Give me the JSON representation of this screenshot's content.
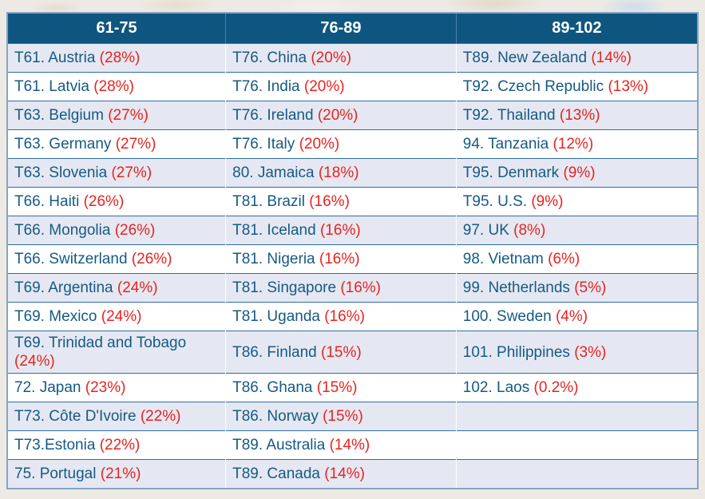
{
  "chart_data": {
    "type": "table",
    "title": "",
    "columns": [
      "61-75",
      "76-89",
      "89-102"
    ],
    "rows": [
      [
        {
          "name": "T61. Austria",
          "pct": "(28%)",
          "percent": 28
        },
        {
          "name": "T76. China",
          "pct": "(20%)",
          "percent": 20
        },
        {
          "name": "T89. New Zealand",
          "pct": "(14%)",
          "percent": 14
        }
      ],
      [
        {
          "name": "T61. Latvia",
          "pct": "(28%)",
          "percent": 28
        },
        {
          "name": "T76. India",
          "pct": "(20%)",
          "percent": 20
        },
        {
          "name": "T92. Czech Republic",
          "pct": "(13%)",
          "percent": 13
        }
      ],
      [
        {
          "name": "T63. Belgium",
          "pct": "(27%)",
          "percent": 27
        },
        {
          "name": "T76. Ireland",
          "pct": "(20%)",
          "percent": 20
        },
        {
          "name": "T92. Thailand",
          "pct": "(13%)",
          "percent": 13
        }
      ],
      [
        {
          "name": "T63. Germany",
          "pct": "(27%)",
          "percent": 27
        },
        {
          "name": "T76. Italy",
          "pct": "(20%)",
          "percent": 20
        },
        {
          "name": "94. Tanzania",
          "pct": "(12%)",
          "percent": 12
        }
      ],
      [
        {
          "name": "T63. Slovenia",
          "pct": "(27%)",
          "percent": 27
        },
        {
          "name": "80. Jamaica",
          "pct": "(18%)",
          "percent": 18
        },
        {
          "name": "T95. Denmark",
          "pct": "(9%)",
          "percent": 9
        }
      ],
      [
        {
          "name": "T66. Haiti",
          "pct": "(26%)",
          "percent": 26
        },
        {
          "name": "T81. Brazil",
          "pct": "(16%)",
          "percent": 16
        },
        {
          "name": "T95. U.S.",
          "pct": "(9%)",
          "percent": 9
        }
      ],
      [
        {
          "name": "T66. Mongolia",
          "pct": "(26%)",
          "percent": 26
        },
        {
          "name": "T81. Iceland",
          "pct": "(16%)",
          "percent": 16
        },
        {
          "name": "97. UK",
          "pct": "(8%)",
          "percent": 8
        }
      ],
      [
        {
          "name": "T66. Switzerland",
          "pct": "(26%)",
          "percent": 26
        },
        {
          "name": "T81. Nigeria",
          "pct": "(16%)",
          "percent": 16
        },
        {
          "name": "98. Vietnam",
          "pct": "(6%)",
          "percent": 6
        }
      ],
      [
        {
          "name": "T69. Argentina",
          "pct": "(24%)",
          "percent": 24
        },
        {
          "name": "T81. Singapore",
          "pct": "(16%)",
          "percent": 16
        },
        {
          "name": "99. Netherlands",
          "pct": "(5%)",
          "percent": 5
        }
      ],
      [
        {
          "name": "T69. Mexico",
          "pct": "(24%)",
          "percent": 24
        },
        {
          "name": "T81. Uganda",
          "pct": "(16%)",
          "percent": 16
        },
        {
          "name": "100. Sweden",
          "pct": "(4%)",
          "percent": 4
        }
      ],
      [
        {
          "name": "T69. Trinidad and Tobago",
          "pct": "(24%)",
          "percent": 24
        },
        {
          "name": "T86. Finland",
          "pct": "(15%)",
          "percent": 15
        },
        {
          "name": "101. Philippines",
          "pct": "(3%)",
          "percent": 3
        }
      ],
      [
        {
          "name": "72. Japan",
          "pct": "(23%)",
          "percent": 23
        },
        {
          "name": "T86. Ghana",
          "pct": "(15%)",
          "percent": 15
        },
        {
          "name": "102. Laos",
          "pct": "(0.2%)",
          "percent": 0.2
        }
      ],
      [
        {
          "name": "T73. Côte D'Ivoire",
          "pct": "(22%)",
          "percent": 22
        },
        {
          "name": "T86. Norway",
          "pct": "(15%)",
          "percent": 15
        },
        null
      ],
      [
        {
          "name": "T73.Estonia",
          "pct": "(22%)",
          "percent": 22
        },
        {
          "name": "T89. Australia",
          "pct": "(14%)",
          "percent": 14
        },
        null
      ],
      [
        {
          "name": "75. Portugal",
          "pct": "(21%)",
          "percent": 21
        },
        {
          "name": "T89. Canada",
          "pct": "(14%)",
          "percent": 14
        },
        null
      ]
    ],
    "colors": {
      "header_background": "#0e5680",
      "header_text": "#ffffff",
      "row_stripe": "#e5e8f2",
      "row_plain": "#ffffff",
      "country_text": "#165a84",
      "percent_text": "#e8231f",
      "row_border": "#2f6ca4",
      "outer_border": "#86a3c8"
    },
    "legend_position": "none",
    "grid": true
  }
}
